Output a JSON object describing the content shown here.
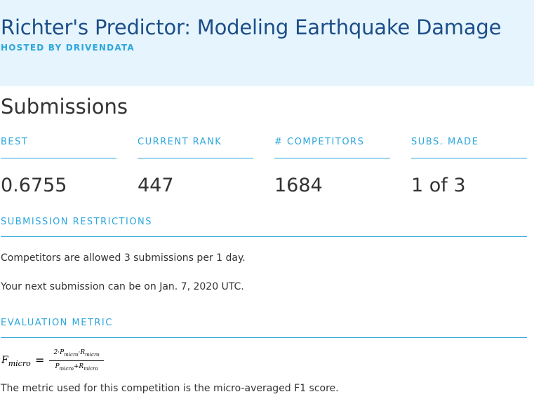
{
  "header": {
    "title": "Richter's Predictor: Modeling Earthquake Damage",
    "hosted_by": "HOSTED BY DRIVENDATA"
  },
  "submissions": {
    "title": "Submissions",
    "stats": [
      {
        "label": "BEST",
        "value": "0.6755"
      },
      {
        "label": "CURRENT RANK",
        "value": "447"
      },
      {
        "label": "# COMPETITORS",
        "value": "1684"
      },
      {
        "label": "SUBS. MADE",
        "value": "1 of 3"
      }
    ]
  },
  "restrictions": {
    "label": "SUBMISSION RESTRICTIONS",
    "text1": "Competitors are allowed 3 submissions per 1 day.",
    "text2": "Your next submission can be on Jan. 7, 2020 UTC."
  },
  "evaluation": {
    "label": "EVALUATION METRIC",
    "formula": {
      "lhs": "F",
      "lhs_sub": "micro",
      "eq": "=",
      "num_a": "2·P",
      "num_a_sub": "micro",
      "num_mid": "·R",
      "num_b_sub": "micro",
      "den_a": "P",
      "den_a_sub": "micro",
      "den_mid": "+R",
      "den_b_sub": "micro"
    },
    "description": "The metric used for this competition is the micro-averaged F1 score."
  },
  "colors": {
    "header_bg": "#e6f5fd",
    "title": "#1d4e89",
    "accent": "#2ca6dc",
    "text": "#333333"
  }
}
